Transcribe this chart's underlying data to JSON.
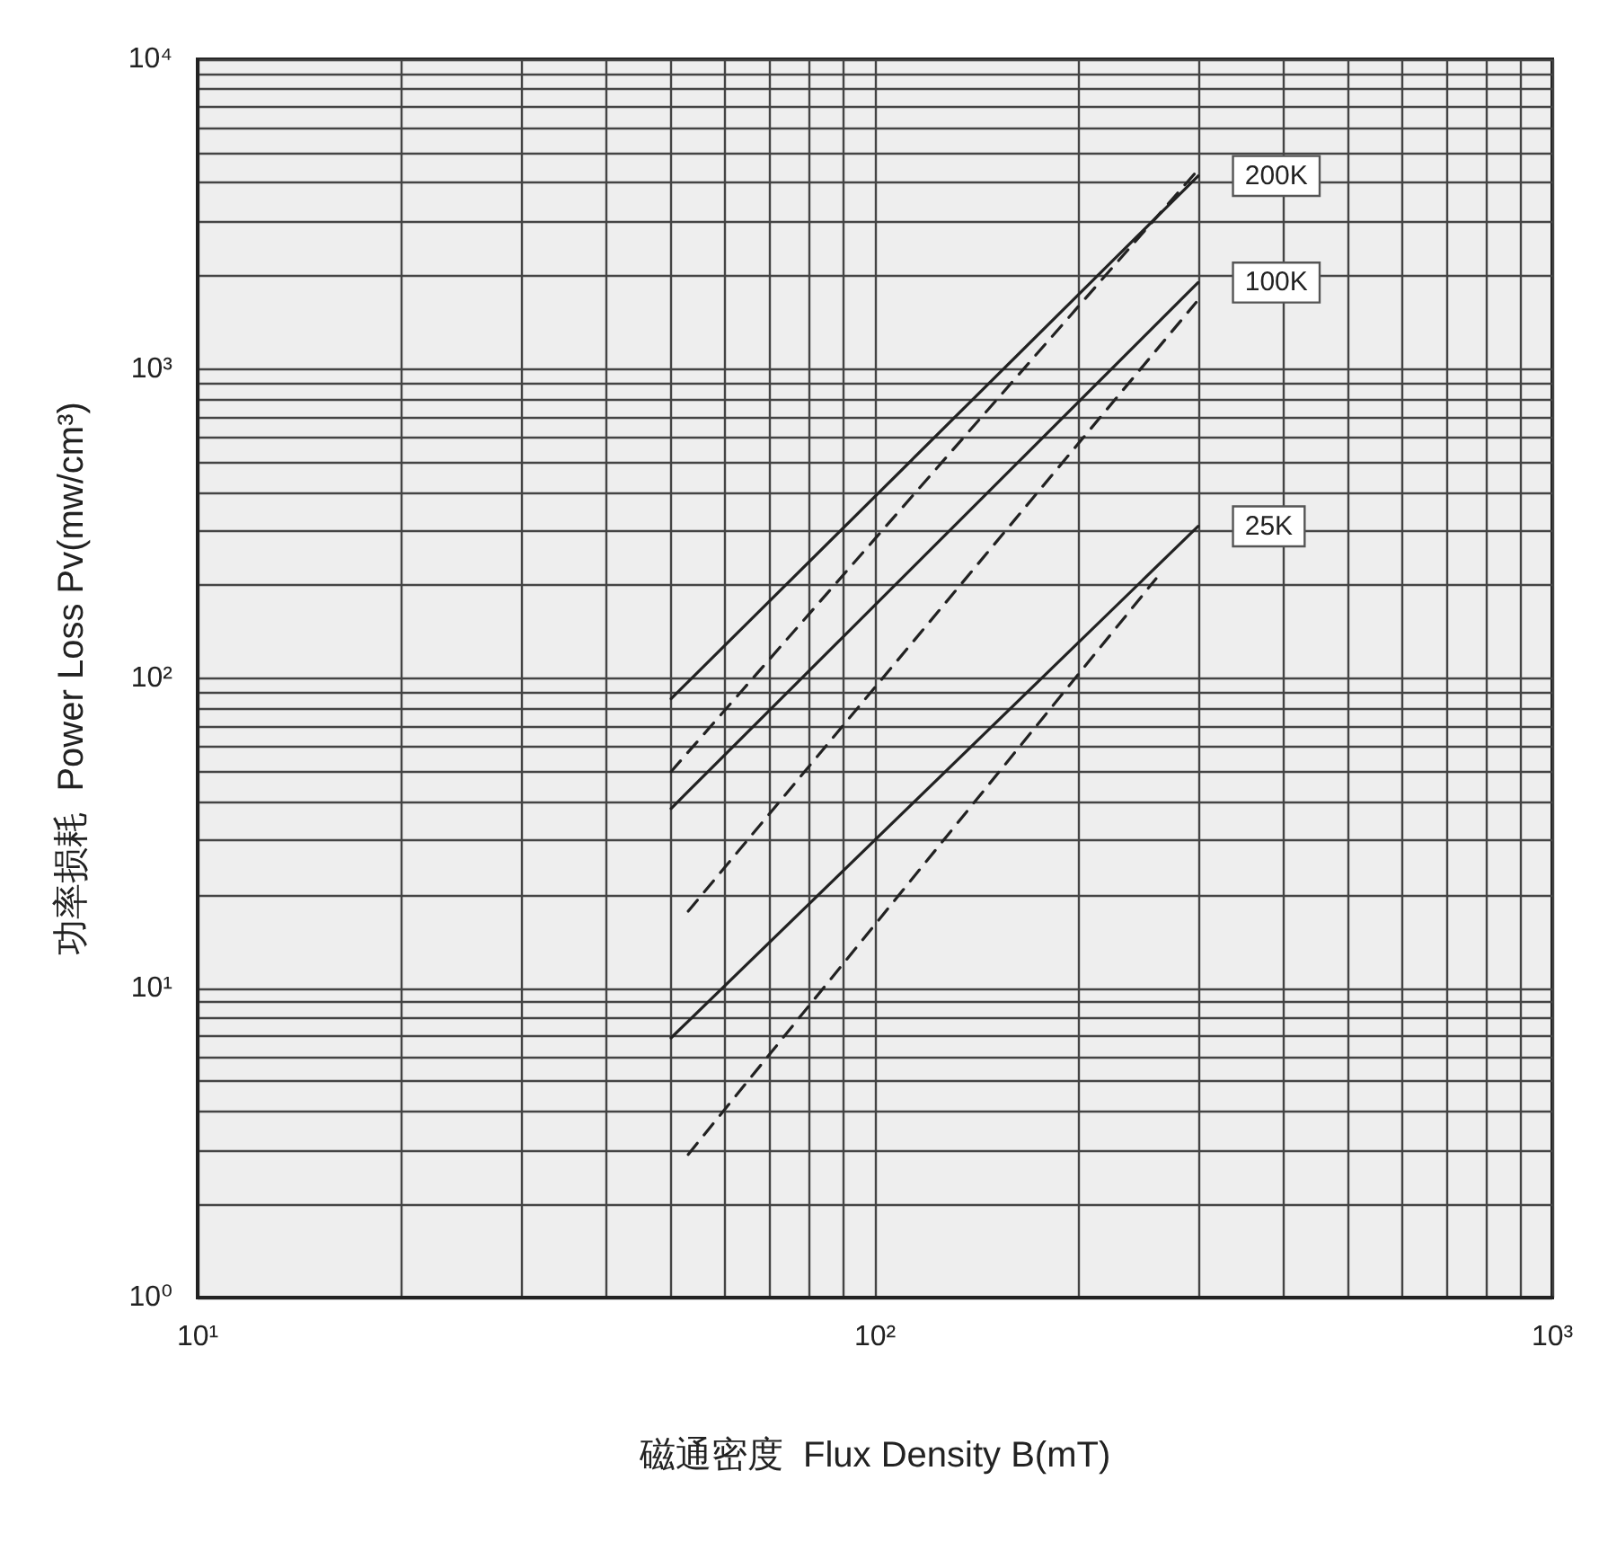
{
  "chart_data": {
    "type": "line",
    "xlabel": "磁通密度  Flux Density B(mT)",
    "ylabel": "功率损耗  Power Loss Pv(mw/cm³)",
    "xlim": [
      10,
      1000
    ],
    "ylim": [
      1,
      10000
    ],
    "xticks": [
      {
        "value": 10,
        "label": "10¹"
      },
      {
        "value": 20,
        "label": null
      },
      {
        "value": 30,
        "label": null
      },
      {
        "value": 40,
        "label": null
      },
      {
        "value": 50,
        "label": null
      },
      {
        "value": 60,
        "label": null
      },
      {
        "value": 70,
        "label": null
      },
      {
        "value": 80,
        "label": null
      },
      {
        "value": 90,
        "label": null
      },
      {
        "value": 100,
        "label": "10²"
      },
      {
        "value": 200,
        "label": null
      },
      {
        "value": 300,
        "label": null
      },
      {
        "value": 400,
        "label": null
      },
      {
        "value": 500,
        "label": null
      },
      {
        "value": 600,
        "label": null
      },
      {
        "value": 700,
        "label": null
      },
      {
        "value": 800,
        "label": null
      },
      {
        "value": 900,
        "label": null
      },
      {
        "value": 1000,
        "label": "10³"
      }
    ],
    "yticks": [
      {
        "value": 1,
        "label": "10⁰"
      },
      {
        "value": 2,
        "label": null
      },
      {
        "value": 3,
        "label": null
      },
      {
        "value": 4,
        "label": null
      },
      {
        "value": 5,
        "label": null
      },
      {
        "value": 6,
        "label": null
      },
      {
        "value": 7,
        "label": null
      },
      {
        "value": 8,
        "label": null
      },
      {
        "value": 9,
        "label": null
      },
      {
        "value": 10,
        "label": "10¹"
      },
      {
        "value": 20,
        "label": null
      },
      {
        "value": 30,
        "label": null
      },
      {
        "value": 40,
        "label": null
      },
      {
        "value": 50,
        "label": null
      },
      {
        "value": 60,
        "label": null
      },
      {
        "value": 70,
        "label": null
      },
      {
        "value": 80,
        "label": null
      },
      {
        "value": 90,
        "label": null
      },
      {
        "value": 100,
        "label": "10²"
      },
      {
        "value": 200,
        "label": null
      },
      {
        "value": 300,
        "label": null
      },
      {
        "value": 400,
        "label": null
      },
      {
        "value": 500,
        "label": null
      },
      {
        "value": 600,
        "label": null
      },
      {
        "value": 700,
        "label": null
      },
      {
        "value": 800,
        "label": null
      },
      {
        "value": 900,
        "label": null
      },
      {
        "value": 1000,
        "label": "10³"
      },
      {
        "value": 2000,
        "label": null
      },
      {
        "value": 3000,
        "label": null
      },
      {
        "value": 4000,
        "label": null
      },
      {
        "value": 5000,
        "label": null
      },
      {
        "value": 6000,
        "label": null
      },
      {
        "value": 7000,
        "label": null
      },
      {
        "value": 8000,
        "label": null
      },
      {
        "value": 9000,
        "label": null
      },
      {
        "value": 10000,
        "label": "10⁴"
      }
    ],
    "log": "xy",
    "grid": true,
    "legend": false,
    "marker": "none",
    "series": [
      {
        "name": "200K",
        "color": "#222222",
        "line_style": "solid",
        "x": [
          50,
          300
        ],
        "values": [
          86,
          4200
        ]
      },
      {
        "color": "#222222",
        "line_style": "dashed",
        "x": [
          50,
          300
        ],
        "values": [
          50,
          4400
        ]
      },
      {
        "name": "100K",
        "color": "#222222",
        "line_style": "solid",
        "x": [
          50,
          300
        ],
        "values": [
          38,
          1900
        ]
      },
      {
        "color": "#222222",
        "line_style": "dashed",
        "x": [
          53,
          298
        ],
        "values": [
          17.7,
          1640
        ]
      },
      {
        "name": "25K",
        "color": "#222222",
        "line_style": "solid",
        "x": [
          50,
          300
        ],
        "values": [
          6.9,
          310
        ]
      },
      {
        "color": "#222222",
        "line_style": "dashed",
        "x": [
          53,
          260
        ],
        "values": [
          2.9,
          210
        ]
      }
    ]
  }
}
